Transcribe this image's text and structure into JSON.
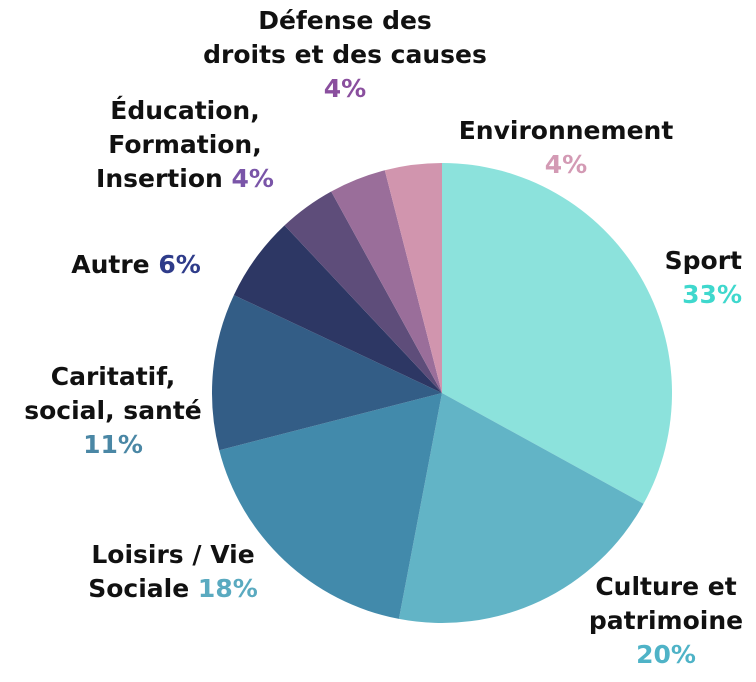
{
  "chart_data": {
    "type": "pie",
    "categories": [
      "Sport",
      "Culture et\npatrimoine",
      "Loisirs / Vie\nSociale",
      "Caritatif,\nsocial, santé",
      "Autre",
      "Éducation,\nFormation,\nInsertion",
      "Défense des\ndroits et des causes",
      "Environnement"
    ],
    "values": [
      33,
      20,
      18,
      11,
      6,
      4,
      4,
      4
    ],
    "value_labels": [
      "33%",
      "20%",
      "18%",
      "11%",
      "6%",
      "4%",
      "4%",
      "4%"
    ],
    "colors": [
      "#8ce2dc",
      "#62b4c6",
      "#428aab",
      "#335d86",
      "#2d3764",
      "#5e4d7a",
      "#9a6e9a",
      "#d195ae"
    ],
    "label_colors": [
      "#3fd8cd",
      "#4fb3c7",
      "#5aaac0",
      "#4a87a5",
      "#2f3c8a",
      "#7a55a8",
      "#8a4f9e",
      "#d39ab4"
    ]
  }
}
